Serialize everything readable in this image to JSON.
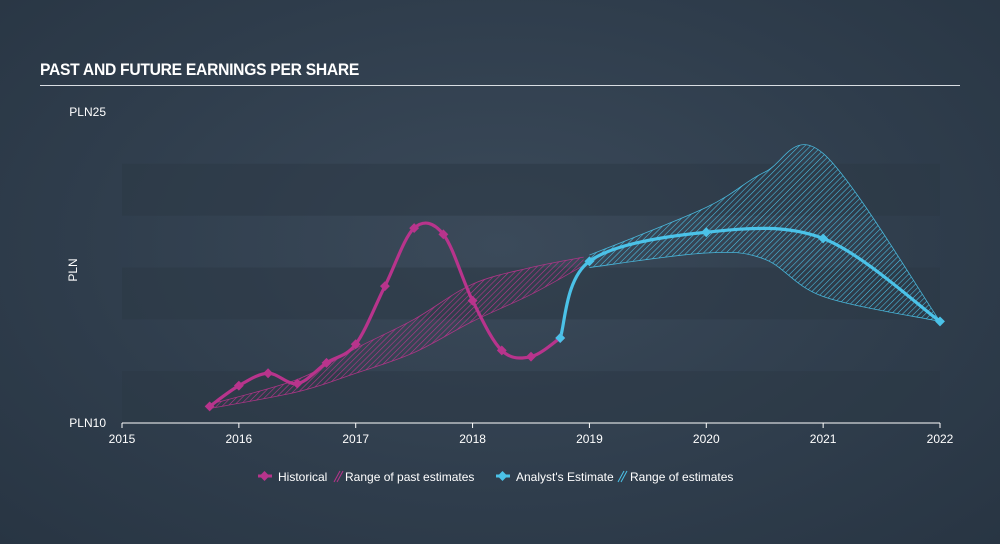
{
  "title": "PAST AND FUTURE EARNINGS PER SHARE",
  "colors": {
    "historical": "#b8348c",
    "estimate": "#4bc2e8",
    "band": "#2b3846",
    "background": "#34424f"
  },
  "chart_data": {
    "type": "line",
    "title": "PAST AND FUTURE EARNINGS PER SHARE",
    "ylabel": "PLN",
    "ylim": [
      10,
      25
    ],
    "xlim": [
      2015,
      2022
    ],
    "x_ticks": [
      "2015",
      "2016",
      "2017",
      "2018",
      "2019",
      "2020",
      "2021",
      "2022"
    ],
    "y_tick_labels": [
      {
        "value": 25,
        "label": "PLN25"
      },
      {
        "value": 10,
        "label": "PLN10"
      }
    ],
    "grid": "horizontal bands",
    "legend_position": "bottom",
    "series": [
      {
        "name": "Historical",
        "x": [
          2015.75,
          2016.0,
          2016.25,
          2016.5,
          2016.75,
          2017.0,
          2017.25,
          2017.5,
          2017.75,
          2018.0,
          2018.25,
          2018.5,
          2018.75
        ],
        "y": [
          10.8,
          11.8,
          12.4,
          11.9,
          12.9,
          13.8,
          16.6,
          19.4,
          19.1,
          15.9,
          13.5,
          13.2,
          14.1
        ]
      },
      {
        "name": "Range of past estimates",
        "x": [
          2015.75,
          2016.5,
          2017.0,
          2017.5,
          2018.0,
          2018.5,
          2018.95
        ],
        "upper": [
          10.9,
          12.1,
          13.6,
          15.0,
          16.7,
          17.5,
          18.0
        ],
        "lower": [
          10.7,
          11.5,
          12.4,
          13.4,
          14.9,
          16.2,
          17.6
        ]
      },
      {
        "name": "Analyst's Estimate",
        "x": [
          2018.75,
          2019.0,
          2020.0,
          2021.0,
          2022.0
        ],
        "y": [
          14.1,
          17.8,
          19.2,
          18.9,
          14.9
        ]
      },
      {
        "name": "Range of estimates",
        "x": [
          2019.0,
          2020.0,
          2020.5,
          2021.0,
          2022.0
        ],
        "upper": [
          18.1,
          20.4,
          22.1,
          23.0,
          14.9
        ],
        "lower": [
          17.5,
          18.2,
          17.9,
          16.1,
          14.9
        ]
      }
    ]
  },
  "legend": {
    "historical": "Historical",
    "past_range": "Range of past estimates",
    "estimate": "Analyst's Estimate",
    "estimate_range": "Range of estimates"
  }
}
